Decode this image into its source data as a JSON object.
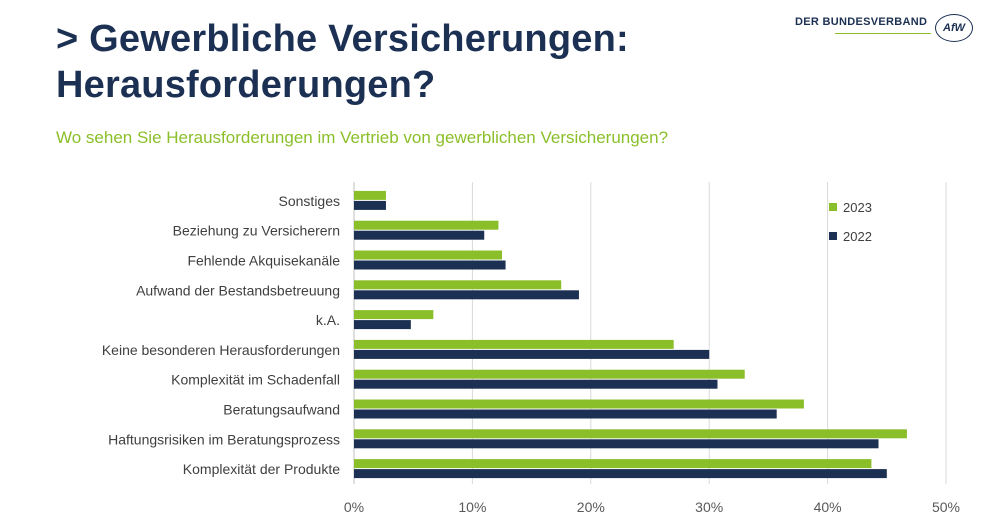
{
  "header": {
    "title_line1": "> Gewerbliche Versicherungen:",
    "title_line2": "Herausforderungen?",
    "subtitle": "Wo sehen Sie Herausforderungen im Vertrieb von gewerblichen Versicherungen?",
    "logo_text": "DER BUNDESVERBAND",
    "logo_badge": "AfW"
  },
  "colors": {
    "series_2023": "#8bbf2a",
    "series_2022": "#1b3052",
    "title": "#1b3052",
    "subtitle": "#8bbf2a",
    "grid": "#d9d9d9"
  },
  "chart_data": {
    "type": "bar",
    "orientation": "horizontal",
    "categories": [
      "Sonstiges",
      "Beziehung zu Versicherern",
      "Fehlende Akquisekanäle",
      "Aufwand der Bestandsbetreuung",
      "k.A.",
      "Keine besonderen Herausforderungen",
      "Komplexität im Schadenfall",
      "Beratungsaufwand",
      "Haftungsrisiken im Beratungsprozess",
      "Komplexität der Produkte"
    ],
    "series": [
      {
        "name": "2023",
        "values": [
          2.7,
          12.2,
          12.5,
          17.5,
          6.7,
          27.0,
          33.0,
          38.0,
          46.7,
          43.7
        ]
      },
      {
        "name": "2022",
        "values": [
          2.7,
          11.0,
          12.8,
          19.0,
          4.8,
          30.0,
          30.7,
          35.7,
          44.3,
          45.0
        ]
      }
    ],
    "xlim": [
      0,
      50
    ],
    "xticks": [
      "0%",
      "10%",
      "20%",
      "30%",
      "40%",
      "50%"
    ],
    "xtick_values": [
      0,
      10,
      20,
      30,
      40,
      50
    ],
    "grid": true,
    "legend_position": "top-right"
  }
}
